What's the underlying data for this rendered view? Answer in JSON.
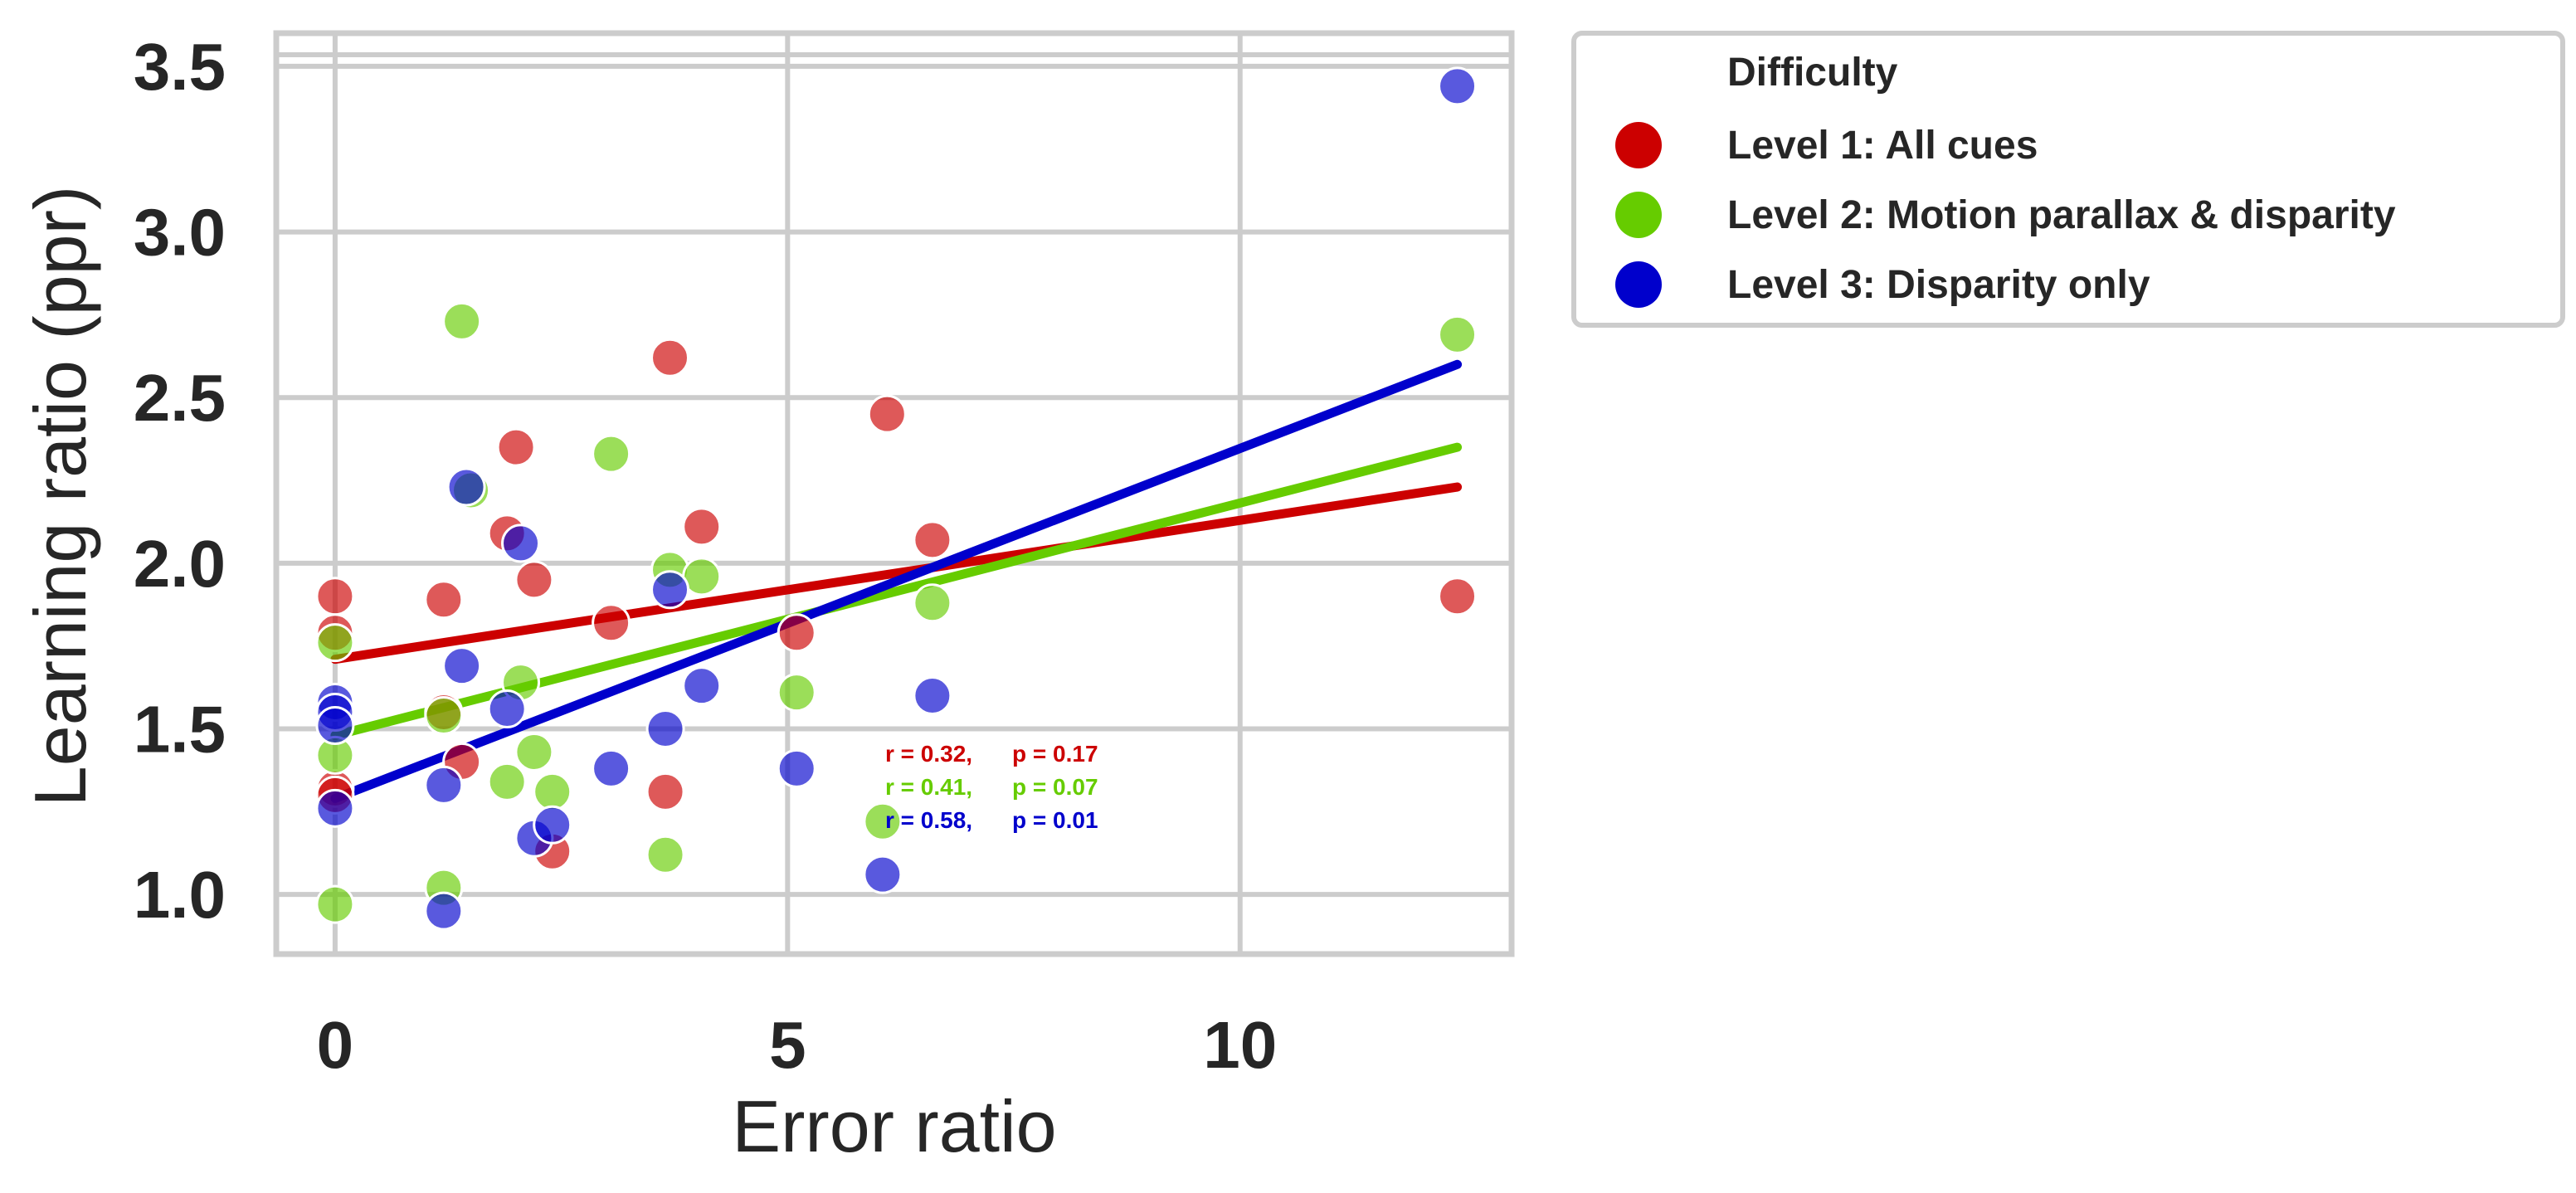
{
  "chart_data": {
    "type": "scatter",
    "xlabel": "Error ratio",
    "ylabel": "Learning ratio (ppr)",
    "xlim": [
      -0.65,
      13.0
    ],
    "ylim": [
      0.82,
      3.6
    ],
    "x_ticks": [
      0,
      5,
      10
    ],
    "y_ticks": [
      1.0,
      1.5,
      2.0,
      2.5,
      3.0,
      3.5
    ],
    "y_tick_labels": [
      "1.0",
      "1.5",
      "2.0",
      "2.5",
      "3.0",
      "3.5"
    ],
    "grid": true,
    "legend": {
      "title": "Difficulty",
      "placement": "outside-top-right"
    },
    "series": [
      {
        "name": "Level 1: All cues",
        "color": "#cc0000",
        "points": [
          [
            0,
            1.9
          ],
          [
            0,
            1.79
          ],
          [
            0,
            1.32
          ],
          [
            0,
            1.3
          ],
          [
            1.2,
            1.89
          ],
          [
            1.2,
            1.55
          ],
          [
            1.4,
            1.4
          ],
          [
            1.9,
            2.09
          ],
          [
            2.0,
            2.35
          ],
          [
            2.2,
            1.95
          ],
          [
            2.4,
            1.13
          ],
          [
            3.05,
            1.82
          ],
          [
            3.65,
            1.31
          ],
          [
            3.7,
            2.62
          ],
          [
            4.05,
            2.11
          ],
          [
            5.1,
            1.79
          ],
          [
            6.1,
            2.45
          ],
          [
            6.6,
            2.07
          ],
          [
            12.4,
            1.9
          ]
        ],
        "fit": {
          "x": [
            0,
            12.4
          ],
          "y": [
            1.71,
            2.23
          ]
        },
        "stats": {
          "r": "r = 0.32,",
          "p": "p = 0.17"
        }
      },
      {
        "name": "Level 2: Motion parallax & disparity",
        "color": "#66cc00",
        "points": [
          [
            0,
            1.76
          ],
          [
            0,
            1.42
          ],
          [
            0,
            0.97
          ],
          [
            1.2,
            1.54
          ],
          [
            1.2,
            1.02
          ],
          [
            1.4,
            2.73
          ],
          [
            1.5,
            2.22
          ],
          [
            1.9,
            1.34
          ],
          [
            2.05,
            1.64
          ],
          [
            2.2,
            1.43
          ],
          [
            2.4,
            1.31
          ],
          [
            3.05,
            2.33
          ],
          [
            3.65,
            1.12
          ],
          [
            3.7,
            1.98
          ],
          [
            4.05,
            1.96
          ],
          [
            5.1,
            1.61
          ],
          [
            6.05,
            1.22
          ],
          [
            6.6,
            1.88
          ],
          [
            12.4,
            2.69
          ]
        ],
        "fit": {
          "x": [
            0,
            12.4
          ],
          "y": [
            1.48,
            2.35
          ]
        },
        "stats": {
          "r": "r = 0.41,",
          "p": "p = 0.07"
        }
      },
      {
        "name": "Level 3: Disparity only",
        "color": "#0000cc",
        "points": [
          [
            0,
            1.58
          ],
          [
            0,
            1.55
          ],
          [
            0,
            1.51
          ],
          [
            0,
            1.26
          ],
          [
            1.2,
            1.33
          ],
          [
            1.2,
            0.95
          ],
          [
            1.4,
            1.69
          ],
          [
            1.45,
            2.23
          ],
          [
            1.9,
            1.56
          ],
          [
            2.05,
            2.06
          ],
          [
            2.2,
            1.17
          ],
          [
            2.4,
            1.21
          ],
          [
            3.05,
            1.38
          ],
          [
            3.65,
            1.5
          ],
          [
            3.7,
            1.92
          ],
          [
            4.05,
            1.63
          ],
          [
            5.1,
            1.38
          ],
          [
            6.05,
            1.06
          ],
          [
            6.6,
            1.6
          ],
          [
            12.4,
            3.44
          ]
        ],
        "fit": {
          "x": [
            0,
            12.4
          ],
          "y": [
            1.29,
            2.6
          ]
        },
        "stats": {
          "r": "r = 0.58,",
          "p": "p = 0.01"
        }
      }
    ]
  }
}
